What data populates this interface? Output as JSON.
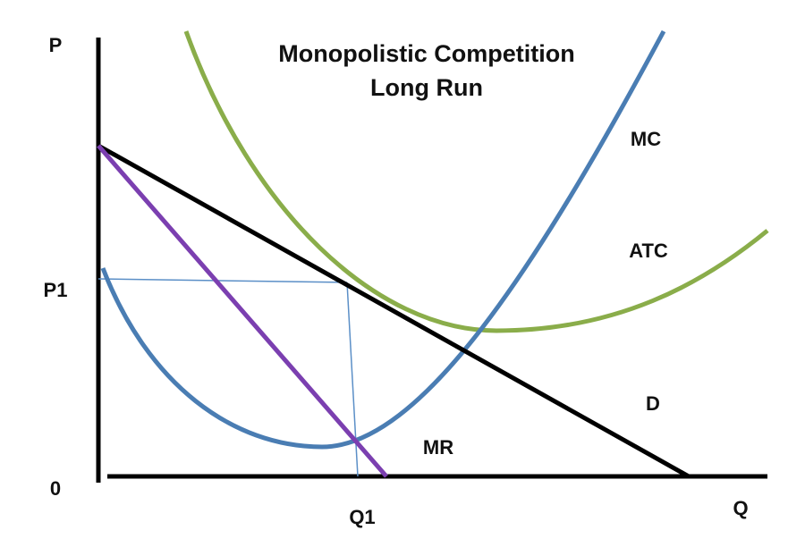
{
  "title": {
    "line1": "Monopolistic Competition",
    "line2": "Long Run"
  },
  "axes": {
    "y_label": "P",
    "x_label": "Q",
    "origin": "0",
    "price_level": "P1",
    "quantity_level": "Q1"
  },
  "curves": {
    "mc": "MC",
    "atc": "ATC",
    "demand": "D",
    "mr": "MR"
  }
}
